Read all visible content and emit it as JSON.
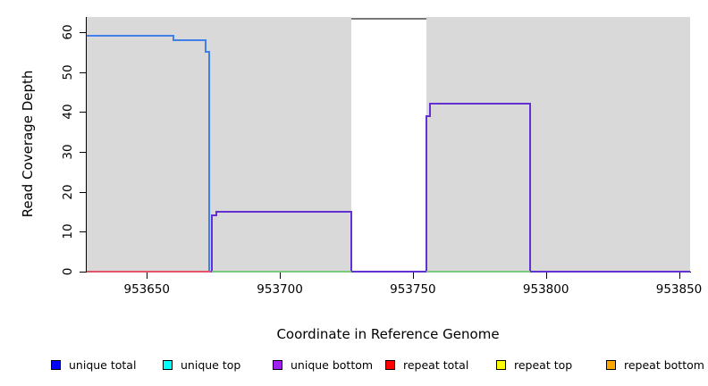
{
  "chart_data": {
    "type": "line",
    "title": "",
    "xlabel": "Coordinate in Reference Genome",
    "ylabel": "Read Coverage Depth",
    "xlim": [
      953627.4,
      953854.2
    ],
    "ylim": [
      0,
      63.8
    ],
    "x_ticks": [
      953650,
      953700,
      953750,
      953800,
      953850
    ],
    "y_ticks": [
      0,
      10,
      20,
      30,
      40,
      50,
      60
    ],
    "grid": false,
    "legend_position": "bottom",
    "plot_bg_color": "#d9d9d9",
    "gap_band": {
      "x_start": 953727,
      "x_end": 953755,
      "fill": "#ffffff",
      "top_line_value": 63.4,
      "top_line_color": "#787878"
    },
    "series": [
      {
        "name": "unique total",
        "line_color": "#4080e8",
        "segments": [
          [
            [
              953627.4,
              59
            ],
            [
              953660,
              58
            ],
            [
              953672,
              55
            ],
            [
              953673.5,
              0
            ],
            [
              953674.2,
              0
            ]
          ]
        ]
      },
      {
        "name": "unique bottom",
        "line_color": "#6330d2",
        "segments": [
          [
            [
              953627.4,
              0
            ],
            [
              953674.5,
              14
            ],
            [
              953676,
              15
            ],
            [
              953727,
              0
            ],
            [
              953755,
              39
            ],
            [
              953756.5,
              42
            ],
            [
              953794,
              0
            ],
            [
              953854.2,
              0
            ]
          ]
        ]
      },
      {
        "name": "repeat total",
        "line_color": "#e25568",
        "segments": [
          [
            [
              953627.4,
              0
            ],
            [
              953674,
              0
            ]
          ]
        ]
      },
      {
        "name": "unlabeled green baseline",
        "line_color": "#7dc87d",
        "segments": [
          [
            [
              953674.5,
              0
            ],
            [
              953727,
              0
            ]
          ],
          [
            [
              953755,
              0
            ],
            [
              953794,
              0
            ]
          ]
        ]
      }
    ],
    "legend": [
      {
        "label": "unique total",
        "color": "#0000ff"
      },
      {
        "label": "unique top",
        "color": "#00ffff"
      },
      {
        "label": "unique bottom",
        "color": "#a020f0"
      },
      {
        "label": "repeat total",
        "color": "#ff0000"
      },
      {
        "label": "repeat top",
        "color": "#ffff00"
      },
      {
        "label": "repeat bottom",
        "color": "#ffa500"
      }
    ]
  }
}
